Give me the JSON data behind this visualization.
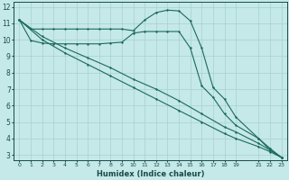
{
  "xlabel": "Humidex (Indice chaleur)",
  "bg_color": "#c5e8e8",
  "grid_color": "#a8d0d0",
  "line_color": "#1a6b5a",
  "xlim": [
    -0.5,
    23.5
  ],
  "ylim": [
    2.7,
    12.3
  ],
  "xticks": [
    0,
    1,
    2,
    3,
    4,
    5,
    6,
    7,
    8,
    9,
    10,
    11,
    12,
    13,
    14,
    15,
    16,
    17,
    18,
    19,
    21,
    22,
    23
  ],
  "yticks": [
    3,
    4,
    5,
    6,
    7,
    8,
    9,
    10,
    11,
    12
  ],
  "line1_x": [
    0,
    1,
    2,
    3,
    4,
    5,
    6,
    7,
    8,
    9,
    10,
    11,
    12,
    13,
    14,
    15,
    16,
    17,
    18,
    19,
    21,
    22,
    23
  ],
  "line1_y": [
    11.2,
    10.65,
    10.65,
    10.65,
    10.65,
    10.65,
    10.65,
    10.65,
    10.65,
    10.65,
    10.55,
    11.2,
    11.65,
    11.8,
    11.75,
    11.15,
    9.5,
    7.1,
    6.4,
    5.3,
    4.0,
    3.3,
    2.85
  ],
  "line2_x": [
    0,
    1,
    2,
    3,
    4,
    5,
    6,
    7,
    8,
    9,
    10,
    11,
    12,
    13,
    14,
    15,
    16,
    17,
    18,
    19,
    21,
    22,
    23
  ],
  "line2_y": [
    11.2,
    9.95,
    9.8,
    9.75,
    9.75,
    9.75,
    9.75,
    9.75,
    9.8,
    9.85,
    10.4,
    10.5,
    10.5,
    10.5,
    10.5,
    9.5,
    7.2,
    6.5,
    5.5,
    4.8,
    4.0,
    3.4,
    2.85
  ],
  "line3_x": [
    0,
    2,
    4,
    6,
    8,
    10,
    12,
    14,
    16,
    18,
    19,
    21,
    22,
    23
  ],
  "line3_y": [
    11.2,
    10.2,
    9.5,
    8.9,
    8.3,
    7.6,
    7.0,
    6.3,
    5.5,
    4.7,
    4.4,
    3.7,
    3.3,
    2.85
  ],
  "line4_x": [
    0,
    2,
    4,
    6,
    8,
    10,
    12,
    14,
    16,
    18,
    19,
    21,
    22,
    23
  ],
  "line4_y": [
    11.2,
    10.0,
    9.2,
    8.5,
    7.8,
    7.1,
    6.4,
    5.7,
    5.0,
    4.3,
    4.0,
    3.5,
    3.2,
    2.85
  ]
}
